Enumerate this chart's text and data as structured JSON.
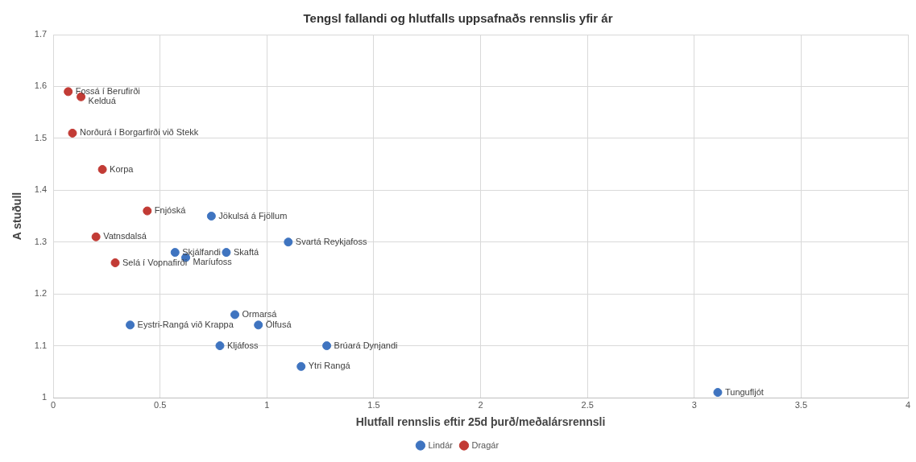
{
  "chart_data": {
    "type": "scatter",
    "title": "Tengsl fallandi og hlutfalls uppsafnaðs rennslis yfir ár",
    "xlabel": "Hlutfall rennslis eftir 25d þurð/meðalársrennsli",
    "ylabel": "A stuðull",
    "series": [
      {
        "name": "Lindár",
        "color": "#3f74c0",
        "x": [
          0.74,
          1.1,
          0.57,
          0.62,
          0.81,
          0.85,
          0.96,
          0.36,
          0.78,
          1.28,
          1.16,
          3.11
        ],
        "values": [
          1.35,
          1.3,
          1.28,
          1.27,
          1.28,
          1.16,
          1.14,
          1.14,
          1.1,
          1.1,
          1.06,
          1.01
        ]
      },
      {
        "name": "Dragár",
        "color": "#c23b35",
        "x": [
          0.07,
          0.13,
          0.09,
          0.23,
          0.44,
          0.2,
          0.29
        ],
        "values": [
          1.59,
          1.58,
          1.51,
          1.44,
          1.36,
          1.31,
          1.26
        ]
      }
    ],
    "annotations": [
      {
        "text": "Jökulsá á Fjöllum",
        "x": 0.74,
        "y": 1.35
      },
      {
        "text": "Svartá Reykjafoss",
        "x": 1.1,
        "y": 1.3
      },
      {
        "text": "Skjálfandi",
        "x": 0.57,
        "y": 1.28
      },
      {
        "text": "Maríufoss",
        "x": 0.62,
        "y": 1.27
      },
      {
        "text": "Skaftá",
        "x": 0.81,
        "y": 1.28
      },
      {
        "text": "Ormarsá",
        "x": 0.85,
        "y": 1.16
      },
      {
        "text": "Ölfusá",
        "x": 0.96,
        "y": 1.14
      },
      {
        "text": "Eystri-Rangá við Krappa",
        "x": 0.36,
        "y": 1.14
      },
      {
        "text": "Kljáfoss",
        "x": 0.78,
        "y": 1.1
      },
      {
        "text": "Brúará Dynjandi",
        "x": 1.28,
        "y": 1.1
      },
      {
        "text": "Ytri Rangá",
        "x": 1.16,
        "y": 1.06
      },
      {
        "text": "Tungufljót",
        "x": 3.11,
        "y": 1.01
      },
      {
        "text": "Fossá í Berufirði",
        "x": 0.07,
        "y": 1.59
      },
      {
        "text": "Kelduá",
        "x": 0.13,
        "y": 1.58
      },
      {
        "text": "Norðurá í Borgarfirði við Stekk",
        "x": 0.09,
        "y": 1.51
      },
      {
        "text": "Korpa",
        "x": 0.23,
        "y": 1.44
      },
      {
        "text": "Fnjóská",
        "x": 0.44,
        "y": 1.36
      },
      {
        "text": "Vatnsdalsá",
        "x": 0.2,
        "y": 1.31
      },
      {
        "text": "Selá í Vopnafirði",
        "x": 0.29,
        "y": 1.26
      }
    ],
    "xlim": [
      0,
      4
    ],
    "xticks": [
      0,
      0.5,
      1,
      1.5,
      2,
      2.5,
      3,
      3.5,
      4
    ],
    "ylim": [
      1,
      1.7
    ],
    "yticks": [
      1,
      1.1,
      1.2,
      1.3,
      1.4,
      1.5,
      1.6,
      1.7
    ],
    "grid": true,
    "legend": "bottom",
    "marker": "circle"
  }
}
